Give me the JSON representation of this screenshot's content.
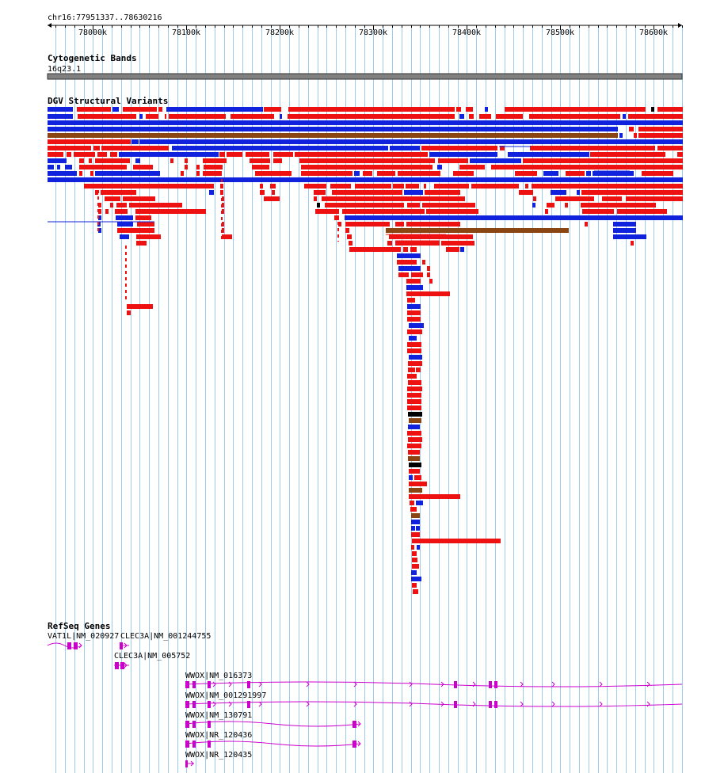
{
  "location": "chr16:77951337..78630216",
  "ruler": {
    "ticks": [
      "78000k",
      "78100k",
      "78200k",
      "78300k",
      "78400k",
      "78500k",
      "78600k"
    ],
    "tick_values": [
      78000000,
      78100000,
      78200000,
      78300000,
      78400000,
      78500000,
      78600000
    ],
    "start": 77951337,
    "end": 78630216
  },
  "tracks": {
    "cytoband": {
      "title": "Cytogenetic Bands",
      "band": "16q23.1"
    },
    "dgv": {
      "title": "DGV Structural Variants"
    },
    "refseq": {
      "title": "RefSeq Genes",
      "genes": [
        {
          "label": "VAT1L|NM_020927",
          "start": 77951337,
          "end": 77988000,
          "strand": "+"
        },
        {
          "label": "CLEC3A|NM_001244755",
          "start": 78030000,
          "end": 78041000,
          "strand": "+"
        },
        {
          "label": "CLEC3A|NM_005752",
          "start": 78023000,
          "end": 78041000,
          "strand": "+"
        },
        {
          "label": "WWOX|NM_016373",
          "start": 78099000,
          "end": 78630216,
          "strand": "+"
        },
        {
          "label": "WWOX|NM_001291997",
          "start": 78099000,
          "end": 78630216,
          "strand": "+"
        },
        {
          "label": "WWOX|NM_130791",
          "start": 78099000,
          "end": 78287000,
          "strand": "+"
        },
        {
          "label": "WWOX|NR_120436",
          "start": 78099000,
          "end": 78287000,
          "strand": "+"
        },
        {
          "label": "WWOX|NR_120435",
          "start": 78099000,
          "end": 78109000,
          "strand": "+"
        }
      ]
    }
  },
  "colors": {
    "loss": "#ee1111",
    "gain": "#1122dd",
    "complex": "#8b4513",
    "other": "#000000",
    "gene": "#cc00cc",
    "grid": "#99ccee",
    "band": "#808080"
  }
}
